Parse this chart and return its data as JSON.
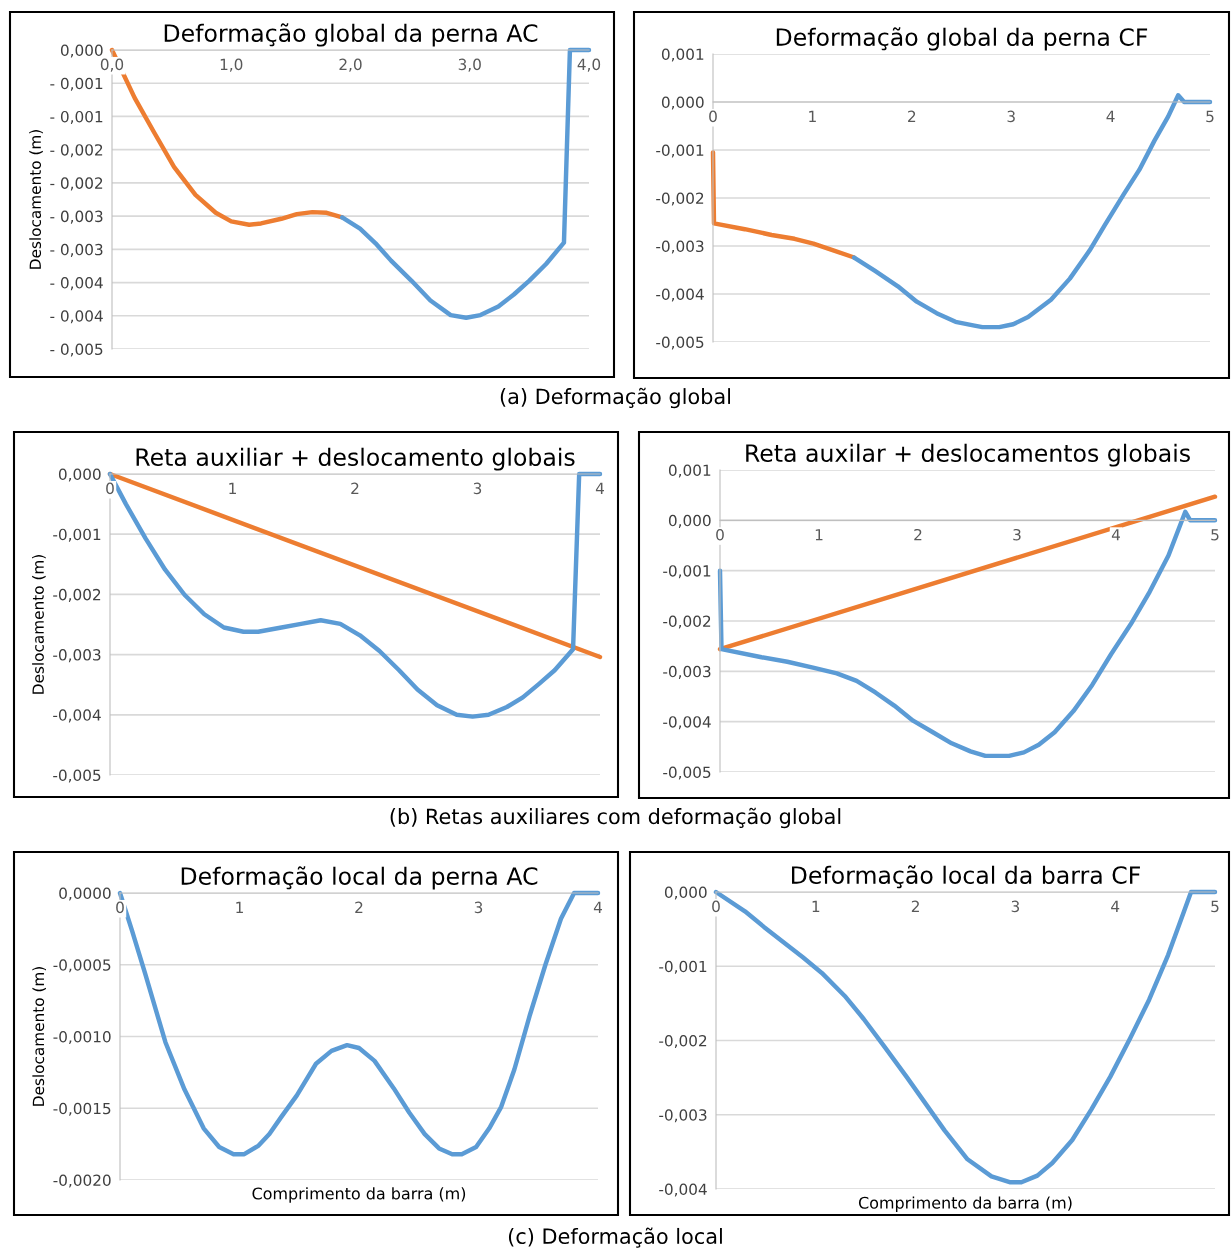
{
  "chart_data": [
    {
      "type": "line",
      "title": "Deformação global da perna AC",
      "ylabel": "Deslocamento (m)",
      "grid": "y",
      "xlim": [
        0,
        4
      ],
      "xticks": [
        {
          "value": 0,
          "label": "0,0"
        },
        {
          "value": 1,
          "label": "1,0"
        },
        {
          "value": 2,
          "label": "2,0"
        },
        {
          "value": 3,
          "label": "3,0"
        },
        {
          "value": 4,
          "label": "4,0"
        }
      ],
      "ylim": [
        -0.0045,
        0
      ],
      "yticks": [
        {
          "value": 0,
          "label": "0,000"
        },
        {
          "value": -0.0005,
          "label": "- 0,001"
        },
        {
          "value": -0.001,
          "label": "- 0,001"
        },
        {
          "value": -0.0015,
          "label": "- 0,002"
        },
        {
          "value": -0.002,
          "label": "- 0,002"
        },
        {
          "value": -0.0025,
          "label": "- 0,003"
        },
        {
          "value": -0.003,
          "label": "- 0,003"
        },
        {
          "value": -0.0035,
          "label": "- 0,004"
        },
        {
          "value": -0.004,
          "label": "- 0,004"
        },
        {
          "value": -0.0045,
          "label": "- 0,005"
        }
      ],
      "annotations": [
        "(a) Deformação global"
      ],
      "series": [
        {
          "color": "#ed7d31",
          "x": [
            0,
            0.19,
            0.35,
            0.52,
            0.7,
            0.87,
            1.0,
            1.15,
            1.25,
            1.42,
            1.55,
            1.68,
            1.8,
            1.93
          ],
          "values": [
            0,
            -0.00072,
            -0.00123,
            -0.00176,
            -0.00218,
            -0.00245,
            -0.00258,
            -0.00263,
            -0.00261,
            -0.00254,
            -0.00247,
            -0.00244,
            -0.00245,
            -0.00252
          ]
        },
        {
          "color": "#5b9bd5",
          "x": [
            1.93,
            2.08,
            2.21,
            2.34,
            2.51,
            2.67,
            2.84,
            2.97,
            3.09,
            3.24,
            3.37,
            3.5,
            3.64,
            3.79,
            3.84,
            4.0
          ],
          "values": [
            -0.00252,
            -0.00269,
            -0.00291,
            -0.00317,
            -0.00347,
            -0.00377,
            -0.00399,
            -0.00403,
            -0.00399,
            -0.00386,
            -0.00368,
            -0.00347,
            -0.00322,
            -0.0029,
            0,
            0
          ]
        }
      ]
    },
    {
      "type": "line",
      "title": "Deformação global da perna CF",
      "grid": "y",
      "xlim": [
        0,
        5
      ],
      "xticks": [
        0,
        1,
        2,
        3,
        4,
        5
      ],
      "ylim": [
        -0.005,
        0.001
      ],
      "yticks": [
        {
          "value": 0.001,
          "label": "0,001"
        },
        {
          "value": 0,
          "label": "0,000"
        },
        {
          "value": -0.001,
          "label": "-0,001"
        },
        {
          "value": -0.002,
          "label": "-0,002"
        },
        {
          "value": -0.003,
          "label": "-0,003"
        },
        {
          "value": -0.004,
          "label": "-0,004"
        },
        {
          "value": -0.005,
          "label": "-0,005"
        }
      ],
      "series": [
        {
          "color": "#ed7d31",
          "x": [
            0,
            0.01,
            0.32,
            0.59,
            0.82,
            1.01,
            1.21,
            1.42
          ],
          "values": [
            -0.00105,
            -0.00253,
            -0.00265,
            -0.00277,
            -0.00285,
            -0.00295,
            -0.00309,
            -0.00324
          ]
        },
        {
          "color": "#5b9bd5",
          "x": [
            1.42,
            1.63,
            1.86,
            2.05,
            2.25,
            2.44,
            2.63,
            2.71,
            2.88,
            3.02,
            3.17,
            3.4,
            3.59,
            3.79,
            3.94,
            4.13,
            4.29,
            4.44,
            4.58,
            4.68,
            4.74,
            5.0
          ],
          "values": [
            -0.00324,
            -0.00352,
            -0.00384,
            -0.00416,
            -0.0044,
            -0.00458,
            -0.00466,
            -0.00469,
            -0.00469,
            -0.00463,
            -0.00448,
            -0.00412,
            -0.00368,
            -0.00309,
            -0.00257,
            -0.00193,
            -0.00141,
            -0.00081,
            -0.0003,
            0.00014,
            0,
            0
          ]
        }
      ]
    },
    {
      "type": "line",
      "title": "Reta auxiliar + deslocamento globais",
      "ylabel": "Deslocamento (m)",
      "grid": "y",
      "xlim": [
        0,
        4
      ],
      "xticks": [
        0,
        1,
        2,
        3,
        4
      ],
      "ylim": [
        -0.005,
        0
      ],
      "yticks": [
        {
          "value": 0,
          "label": "0,000"
        },
        {
          "value": -0.001,
          "label": "-0,001"
        },
        {
          "value": -0.002,
          "label": "-0,002"
        },
        {
          "value": -0.003,
          "label": "-0,003"
        },
        {
          "value": -0.004,
          "label": "-0,004"
        },
        {
          "value": -0.005,
          "label": "-0,005"
        }
      ],
      "annotations": [
        "(b) Retas auxiliares com deformação global"
      ],
      "series": [
        {
          "color": "#ed7d31",
          "x": [
            0,
            4
          ],
          "values": [
            0,
            -0.00304
          ]
        },
        {
          "color": "#5b9bd5",
          "x": [
            0,
            0.13,
            0.29,
            0.45,
            0.61,
            0.77,
            0.93,
            1.09,
            1.21,
            1.4,
            1.56,
            1.72,
            1.88,
            2.04,
            2.2,
            2.36,
            2.51,
            2.67,
            2.83,
            2.96,
            3.09,
            3.24,
            3.37,
            3.5,
            3.63,
            3.78,
            3.83,
            4.0
          ],
          "values": [
            0,
            -0.0005,
            -0.00107,
            -0.00159,
            -0.00201,
            -0.00233,
            -0.00255,
            -0.00262,
            -0.00262,
            -0.00255,
            -0.00249,
            -0.00243,
            -0.00249,
            -0.00268,
            -0.00294,
            -0.00326,
            -0.00358,
            -0.00384,
            -0.004,
            -0.00403,
            -0.004,
            -0.00387,
            -0.00371,
            -0.00349,
            -0.00326,
            -0.00291,
            0,
            0
          ]
        }
      ]
    },
    {
      "type": "line",
      "title": "Reta auxilar + deslocamentos globais",
      "grid": "y",
      "xlim": [
        0,
        5
      ],
      "xticks": [
        0,
        1,
        2,
        3,
        4,
        5
      ],
      "ylim": [
        -0.005,
        0.001
      ],
      "yticks": [
        {
          "value": 0.001,
          "label": "0,001"
        },
        {
          "value": 0,
          "label": "0,000"
        },
        {
          "value": -0.001,
          "label": "-0,001"
        },
        {
          "value": -0.002,
          "label": "-0,002"
        },
        {
          "value": -0.003,
          "label": "-0,003"
        },
        {
          "value": -0.004,
          "label": "-0,004"
        },
        {
          "value": -0.005,
          "label": "-0,005"
        }
      ],
      "series": [
        {
          "color": "#ed7d31",
          "x": [
            0,
            5
          ],
          "values": [
            -0.00256,
            0.00047
          ]
        },
        {
          "color": "#5b9bd5",
          "x": [
            0,
            0.015,
            0.42,
            0.68,
            0.95,
            1.18,
            1.38,
            1.57,
            1.76,
            1.95,
            2.15,
            2.34,
            2.53,
            2.68,
            2.92,
            3.07,
            3.22,
            3.38,
            3.57,
            3.76,
            3.95,
            4.15,
            4.34,
            4.53,
            4.7,
            4.75,
            5.0
          ],
          "values": [
            -0.001,
            -0.00256,
            -0.00272,
            -0.00281,
            -0.00293,
            -0.00304,
            -0.00319,
            -0.00342,
            -0.00368,
            -0.00398,
            -0.00421,
            -0.00443,
            -0.00459,
            -0.00468,
            -0.00468,
            -0.00461,
            -0.00446,
            -0.00421,
            -0.00379,
            -0.00327,
            -0.00266,
            -0.00206,
            -0.00142,
            -0.0007,
            0.00017,
            0,
            0
          ]
        }
      ]
    },
    {
      "type": "line",
      "title": "Deformação local da perna AC",
      "ylabel": "Deslocamento (m)",
      "xlabel": "Comprimento da barra (m)",
      "grid": "y",
      "xlim": [
        0,
        4
      ],
      "xticks": [
        0,
        1,
        2,
        3,
        4
      ],
      "ylim": [
        -0.002,
        0
      ],
      "yticks": [
        {
          "value": 0,
          "label": "0,0000"
        },
        {
          "value": -0.0005,
          "label": "-0,0005"
        },
        {
          "value": -0.001,
          "label": "-0,0010"
        },
        {
          "value": -0.0015,
          "label": "-0,0015"
        },
        {
          "value": -0.002,
          "label": "-0,0020"
        }
      ],
      "annotations": [
        "(c) Deformação local"
      ],
      "series": [
        {
          "color": "#5b9bd5",
          "x": [
            0,
            0.1,
            0.21,
            0.38,
            0.54,
            0.7,
            0.83,
            0.95,
            1.04,
            1.16,
            1.25,
            1.35,
            1.48,
            1.64,
            1.77,
            1.9,
            2.0,
            2.13,
            2.29,
            2.42,
            2.55,
            2.67,
            2.78,
            2.86,
            2.98,
            3.09,
            3.19,
            3.3,
            3.43,
            3.56,
            3.69,
            3.8,
            4.0
          ],
          "values": [
            0,
            -0.00026,
            -0.00056,
            -0.00104,
            -0.00137,
            -0.00164,
            -0.00177,
            -0.00182,
            -0.00182,
            -0.00176,
            -0.00168,
            -0.00156,
            -0.00141,
            -0.00119,
            -0.0011,
            -0.00106,
            -0.00108,
            -0.00117,
            -0.00136,
            -0.00153,
            -0.00168,
            -0.00178,
            -0.00182,
            -0.00182,
            -0.00177,
            -0.00164,
            -0.00149,
            -0.00123,
            -0.00085,
            -0.0005,
            -0.00018,
            0,
            0
          ]
        }
      ]
    },
    {
      "type": "line",
      "title": "Deformação local da barra CF",
      "xlabel": "Comprimento da barra (m)",
      "grid": "y",
      "xlim": [
        0,
        5
      ],
      "xticks": [
        0,
        1,
        2,
        3,
        4,
        5
      ],
      "ylim": [
        -0.004,
        0
      ],
      "yticks": [
        {
          "value": 0,
          "label": "0,000"
        },
        {
          "value": -0.001,
          "label": "-0,001"
        },
        {
          "value": -0.002,
          "label": "-0,002"
        },
        {
          "value": -0.003,
          "label": "-0,003"
        },
        {
          "value": -0.004,
          "label": "-0,004"
        }
      ],
      "series": [
        {
          "color": "#5b9bd5",
          "x": [
            0,
            0.29,
            0.48,
            0.67,
            0.87,
            1.06,
            1.29,
            1.48,
            1.68,
            1.91,
            2.1,
            2.29,
            2.52,
            2.76,
            2.95,
            3.06,
            3.22,
            3.37,
            3.57,
            3.76,
            3.95,
            4.15,
            4.34,
            4.53,
            4.69,
            4.76,
            5.0
          ],
          "values": [
            0,
            -0.00026,
            -0.00047,
            -0.00067,
            -0.00088,
            -0.00109,
            -0.0014,
            -0.00171,
            -0.00207,
            -0.00249,
            -0.00285,
            -0.00321,
            -0.0036,
            -0.00383,
            -0.00391,
            -0.00391,
            -0.00382,
            -0.00365,
            -0.00334,
            -0.00293,
            -0.00249,
            -0.00197,
            -0.00145,
            -0.00085,
            -0.00026,
            0,
            0
          ]
        }
      ]
    }
  ]
}
